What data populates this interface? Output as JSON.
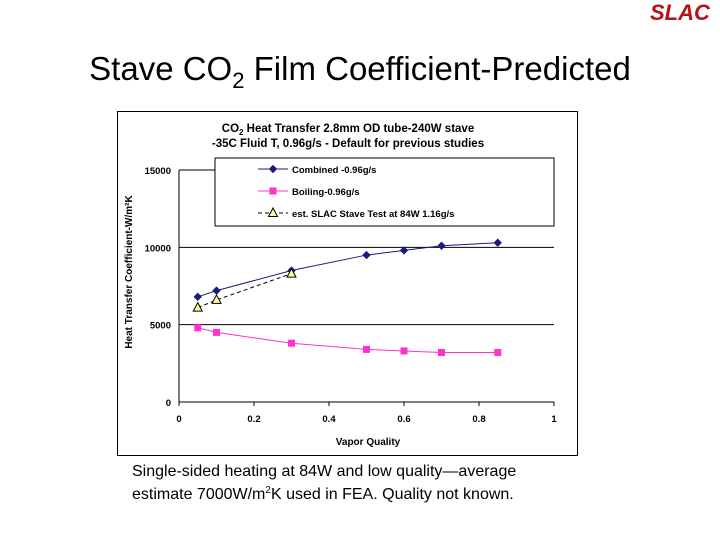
{
  "header": {
    "logo_text": "SLAC",
    "title_main": "Stave CO",
    "title_sub": "2",
    "title_rest": " Film Coefficient-Predicted"
  },
  "caption": {
    "line1": "Single-sided heating at 84W and low quality—average",
    "line2_a": "estimate 7000W/m",
    "line2_sup": "2",
    "line2_b": "K used in FEA. Quality not known."
  },
  "colors": {
    "combined": "#1a1a80",
    "boiling": "#ff33cc",
    "test_fill": "#ffff99",
    "grid": "#000000"
  },
  "chart_data": {
    "type": "line",
    "title_line1_a": "CO",
    "title_line1_sub": "2",
    "title_line1_b": " Heat Transfer 2.8mm OD tube-240W stave",
    "title_line2": "-35C Fluid T, 0.96g/s  - Default for previous  studies",
    "xlabel": "Vapor Quality",
    "ylabel": "Heat Transfer Coefficient-W/m²K",
    "xlim": [
      0,
      1
    ],
    "ylim": [
      0,
      15000
    ],
    "x_ticks": [
      "0",
      "0.2",
      "0.4",
      "0.6",
      "0.8",
      "1"
    ],
    "y_ticks": [
      "0",
      "5000",
      "10000",
      "15000"
    ],
    "grid": "horizontal",
    "legend_position": "top-right",
    "series": [
      {
        "name": "Combined -0.96g/s",
        "marker": "diamond",
        "line": "solid",
        "color": "#1a1a80",
        "x": [
          0.05,
          0.1,
          0.3,
          0.5,
          0.6,
          0.7,
          0.85
        ],
        "y": [
          6800,
          7200,
          8500,
          9500,
          9800,
          10100,
          10300
        ]
      },
      {
        "name": "Boiling-0.96g/s",
        "marker": "square",
        "line": "solid",
        "color": "#ff33cc",
        "x": [
          0.05,
          0.1,
          0.3,
          0.5,
          0.6,
          0.7,
          0.85
        ],
        "y": [
          4800,
          4500,
          3800,
          3400,
          3300,
          3200,
          3200
        ]
      },
      {
        "name": "est. SLAC Stave Test at 84W 1.16g/s",
        "marker": "triangle",
        "line": "dashed",
        "color": "#000000",
        "x": [
          0.05,
          0.1,
          0.3
        ],
        "y": [
          6100,
          6600,
          8300
        ]
      }
    ]
  }
}
